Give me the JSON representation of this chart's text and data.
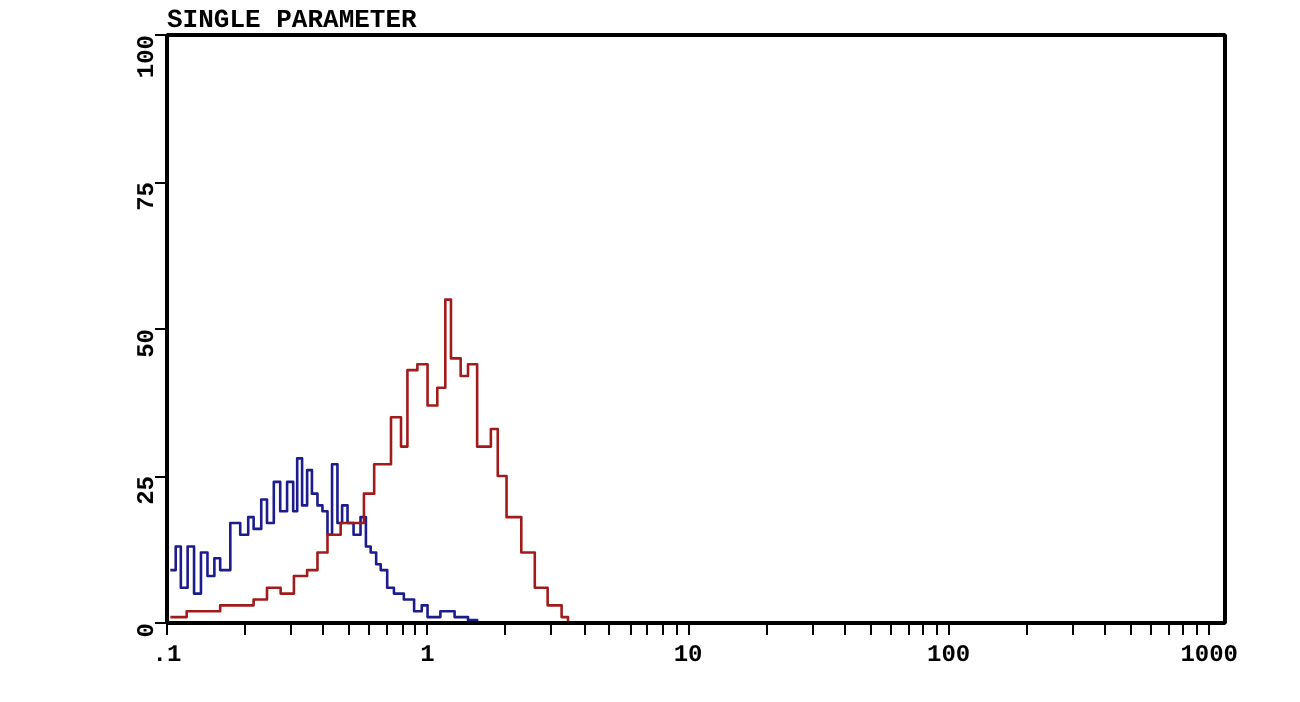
{
  "chart_data": {
    "type": "step",
    "title": "SINGLE PARAMETER",
    "log": "x",
    "xlim": [
      0.1,
      1150
    ],
    "ylim": [
      0,
      100
    ],
    "xticks": [
      {
        "value": 0.1,
        "label": ".1"
      },
      1,
      10,
      100,
      1000,
      {
        "value": 0.2,
        "label": null
      },
      {
        "value": 0.3,
        "label": null
      },
      {
        "value": 0.4,
        "label": null
      },
      {
        "value": 0.5,
        "label": null
      },
      {
        "value": 0.6,
        "label": null
      },
      {
        "value": 0.7,
        "label": null
      },
      {
        "value": 0.8,
        "label": null
      },
      {
        "value": 0.9,
        "label": null
      },
      {
        "value": 2,
        "label": null
      },
      {
        "value": 3,
        "label": null
      },
      {
        "value": 4,
        "label": null
      },
      {
        "value": 5,
        "label": null
      },
      {
        "value": 6,
        "label": null
      },
      {
        "value": 7,
        "label": null
      },
      {
        "value": 8,
        "label": null
      },
      {
        "value": 9,
        "label": null
      },
      {
        "value": 20,
        "label": null
      },
      {
        "value": 30,
        "label": null
      },
      {
        "value": 40,
        "label": null
      },
      {
        "value": 50,
        "label": null
      },
      {
        "value": 60,
        "label": null
      },
      {
        "value": 70,
        "label": null
      },
      {
        "value": 80,
        "label": null
      },
      {
        "value": 90,
        "label": null
      },
      {
        "value": 200,
        "label": null
      },
      {
        "value": 300,
        "label": null
      },
      {
        "value": 400,
        "label": null
      },
      {
        "value": 500,
        "label": null
      },
      {
        "value": 600,
        "label": null
      },
      {
        "value": 700,
        "label": null
      },
      {
        "value": 800,
        "label": null
      },
      {
        "value": 900,
        "label": null
      }
    ],
    "yticks": [
      0,
      25,
      50,
      75,
      100
    ],
    "grid": false,
    "series": [
      {
        "color": "#1c1c8c",
        "x": [
          0.103,
          0.108,
          0.113,
          0.12,
          0.127,
          0.135,
          0.143,
          0.152,
          0.16,
          0.175,
          0.191,
          0.205,
          0.215,
          0.23,
          0.242,
          0.257,
          0.272,
          0.289,
          0.305,
          0.316,
          0.33,
          0.345,
          0.36,
          0.378,
          0.395,
          0.413,
          0.43,
          0.451,
          0.47,
          0.493,
          0.52,
          0.553,
          0.58,
          0.605,
          0.635,
          0.661,
          0.7,
          0.743,
          0.811,
          0.888,
          0.95,
          1.0,
          1.12,
          1.27,
          1.43,
          1.55
        ],
        "values": [
          9,
          13,
          6,
          13,
          5,
          12,
          8,
          11,
          9,
          17,
          15,
          18,
          16,
          21,
          17,
          24,
          19,
          24,
          19,
          28,
          20,
          26,
          22,
          20,
          19,
          15,
          27,
          17,
          20,
          17,
          15,
          18,
          13,
          12,
          10,
          9,
          6,
          5,
          4,
          2,
          3,
          1,
          2,
          1,
          0.5,
          0
        ]
      },
      {
        "color": "#a01c1c",
        "x": [
          0.103,
          0.119,
          0.134,
          0.16,
          0.191,
          0.215,
          0.242,
          0.273,
          0.307,
          0.345,
          0.378,
          0.413,
          0.464,
          0.522,
          0.57,
          0.624,
          0.724,
          0.791,
          0.837,
          0.914,
          1.0,
          1.09,
          1.17,
          1.23,
          1.34,
          1.43,
          1.55,
          1.75,
          1.86,
          2.01,
          2.29,
          2.58,
          2.89,
          3.27,
          3.46,
          1000
        ],
        "values": [
          1,
          2,
          2,
          3,
          3,
          4,
          6,
          5,
          8,
          9,
          12,
          15,
          17,
          17,
          22,
          27,
          35,
          30,
          43,
          44,
          37,
          40,
          55,
          45,
          42,
          44,
          30,
          33,
          25,
          18,
          12,
          6,
          3,
          1,
          0,
          0
        ]
      }
    ]
  }
}
